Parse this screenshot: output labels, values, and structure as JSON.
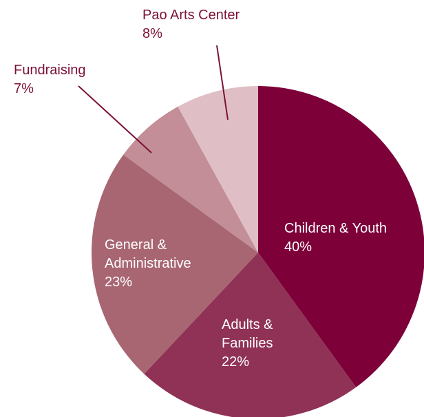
{
  "chart_data": {
    "type": "pie",
    "title": "",
    "start_angle_deg": 0,
    "direction": "clockwise",
    "slices": [
      {
        "name": "Children & Youth",
        "label_lines": [
          "Children & Youth",
          "40%"
        ],
        "value": 40,
        "color": "#7d0039",
        "label_style": "inside"
      },
      {
        "name": "Adults & Families",
        "label_lines": [
          "Adults &",
          "Families",
          "22%"
        ],
        "value": 22,
        "color": "#8f3255",
        "label_style": "inside"
      },
      {
        "name": "General & Administrative",
        "label_lines": [
          "General &",
          "Administrative",
          "23%"
        ],
        "value": 23,
        "color": "#a86672",
        "label_style": "inside"
      },
      {
        "name": "Fundraising",
        "label_lines": [
          "Fundraising",
          "7%"
        ],
        "value": 7,
        "color": "#c38e97",
        "label_style": "outside"
      },
      {
        "name": "Pao Arts Center",
        "label_lines": [
          "Pao Arts Center",
          "8%"
        ],
        "value": 8,
        "color": "#dfbfc5",
        "label_style": "outside"
      }
    ]
  }
}
